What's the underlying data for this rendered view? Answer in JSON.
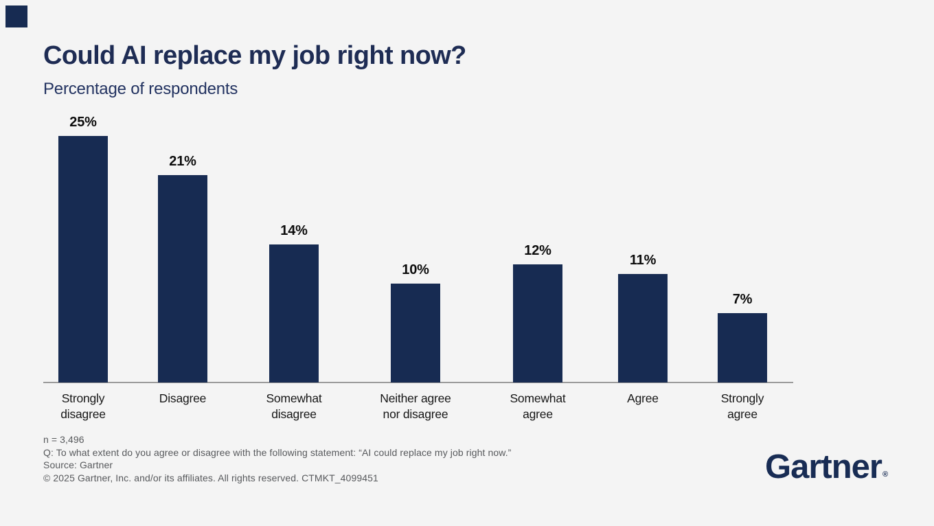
{
  "page": {
    "background_color": "#f4f4f4"
  },
  "brand": {
    "corner_mark_color": "#172b52",
    "logo_text": "Gartner",
    "logo_registered": "®",
    "logo_color": "#182c54"
  },
  "chart_data": {
    "type": "bar",
    "title": "Could AI replace my job right now?",
    "subtitle": "Percentage of respondents",
    "categories": [
      "Strongly disagree",
      "Disagree",
      "Somewhat disagree",
      "Neither agree nor disagree",
      "Somewhat agree",
      "Agree",
      "Strongly agree"
    ],
    "category_lines": [
      [
        "Strongly",
        "disagree"
      ],
      [
        "Disagree"
      ],
      [
        "Somewhat",
        "disagree"
      ],
      [
        "Neither agree",
        "nor disagree"
      ],
      [
        "Somewhat",
        "agree"
      ],
      [
        "Agree"
      ],
      [
        "Strongly",
        "agree"
      ]
    ],
    "values": [
      25,
      21,
      14,
      10,
      12,
      11,
      7
    ],
    "value_labels": [
      "25%",
      "21%",
      "14%",
      "10%",
      "12%",
      "11%",
      "7%"
    ],
    "xlabel": "",
    "ylabel": "Percentage of respondents",
    "ylim": [
      0,
      26
    ],
    "bar_color": "#172b52",
    "axis_line_color": "#9b9b9b",
    "grid": false,
    "legend": false
  },
  "footer": {
    "lines": [
      "n = 3,496",
      "Q: To what extent do you agree or disagree with the following statement: “AI could replace my job right now.”",
      "Source: Gartner",
      "© 2025 Gartner, Inc. and/or its affiliates. All rights reserved. CTMKT_4099451"
    ]
  }
}
